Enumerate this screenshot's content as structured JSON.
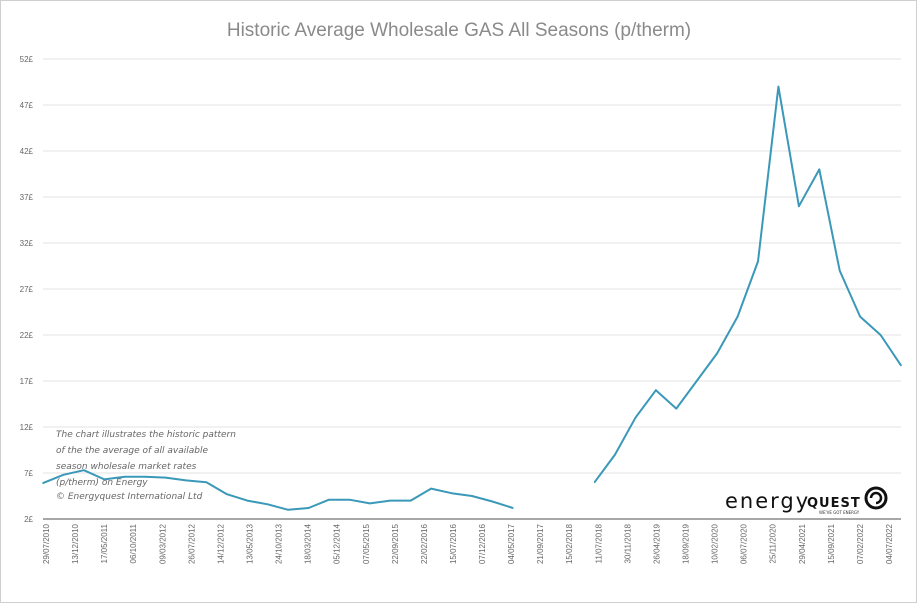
{
  "chart_data": {
    "type": "line",
    "title": "Historic Average Wholesale GAS All Seasons (p/therm)",
    "y_tick_labels": [
      "52£",
      "47£",
      "42£",
      "37£",
      "32£",
      "27£",
      "22£",
      "17£",
      "12£",
      "7£",
      "2£"
    ],
    "y_tick_values": [
      52,
      47,
      42,
      37,
      32,
      27,
      22,
      17,
      12,
      7,
      2
    ],
    "ylim": [
      2,
      52
    ],
    "x_tick_labels": [
      "29/07/2010",
      "13/12/2010",
      "17/05/2011",
      "06/10/2011",
      "09/03/2012",
      "26/07/2012",
      "14/12/2012",
      "13/05/2013",
      "24/10/2013",
      "18/03/2014",
      "05/12/2014",
      "07/05/2015",
      "22/09/2015",
      "22/02/2016",
      "15/07/2016",
      "07/12/2016",
      "04/05/2017",
      "21/09/2017",
      "15/02/2018",
      "11/07/2018",
      "30/11/2018",
      "26/04/2019",
      "18/09/2019",
      "10/02/2020",
      "06/07/2020",
      "25/11/2020",
      "29/04/2021",
      "15/09/2021",
      "07/02/2022",
      "04/07/2022"
    ],
    "gap_after_index": 23,
    "gap_resume_index": 27,
    "series": [
      {
        "color": "#3a98b8",
        "values": [
          5.9,
          6.8,
          7.3,
          6.3,
          6.6,
          6.6,
          6.5,
          6.2,
          6.0,
          4.7,
          4.0,
          3.6,
          3.0,
          3.2,
          4.1,
          4.1,
          3.7,
          4.0,
          4.0,
          5.3,
          4.8,
          4.5,
          3.9,
          3.2,
          null,
          null,
          null,
          6.0,
          9.0,
          13.0,
          16.0,
          14.0,
          17.0,
          20.0,
          24.0,
          30.0,
          49.0,
          36.0,
          40.0,
          29.0,
          24.0,
          22.0,
          18.7
        ]
      }
    ],
    "grid": "horizontal",
    "legend": "none"
  },
  "annotation": {
    "lines": [
      "The chart illustrates the historic pattern",
      "of the the average of all available",
      "season wholesale market rates",
      "(p/therm) on Energy",
      "© Energyquest International Ltd"
    ]
  },
  "logo": {
    "word": "energy",
    "word2": "QUEST",
    "tagline": "WE'VE GOT ENERGY"
  }
}
